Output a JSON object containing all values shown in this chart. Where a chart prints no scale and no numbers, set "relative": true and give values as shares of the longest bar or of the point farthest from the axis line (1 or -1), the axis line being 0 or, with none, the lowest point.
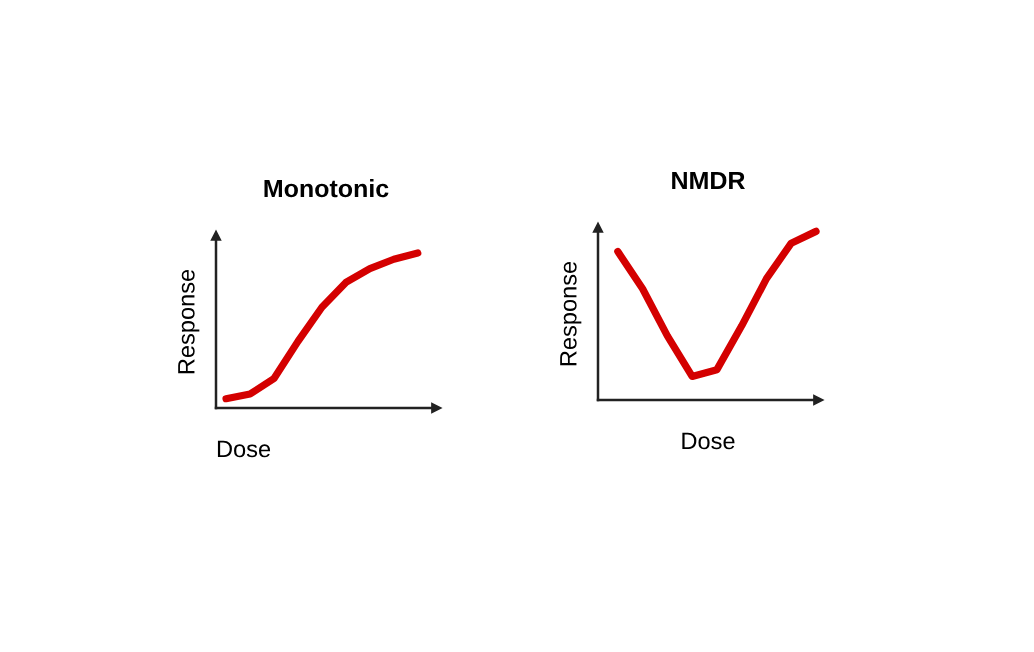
{
  "chart_data": [
    {
      "type": "line",
      "title": "Monotonic",
      "xlabel": "Dose",
      "ylabel": "Response",
      "relative": true,
      "categories": [
        null,
        null,
        null,
        null,
        null,
        null,
        null,
        null,
        null
      ],
      "series": [
        {
          "color": "#d40000",
          "values": [
            0.06,
            0.09,
            0.19,
            0.43,
            0.65,
            0.81,
            0.9,
            0.96,
            1.0
          ]
        }
      ]
    },
    {
      "type": "line",
      "title": "NMDR",
      "xlabel": "Dose",
      "ylabel": "Response",
      "relative": true,
      "categories": [
        null,
        null,
        null,
        null,
        null,
        null,
        null,
        null,
        null
      ],
      "series": [
        {
          "color": "#d40000",
          "values": [
            0.88,
            0.66,
            0.38,
            0.14,
            0.18,
            0.44,
            0.72,
            0.93,
            1.0
          ]
        }
      ]
    }
  ]
}
